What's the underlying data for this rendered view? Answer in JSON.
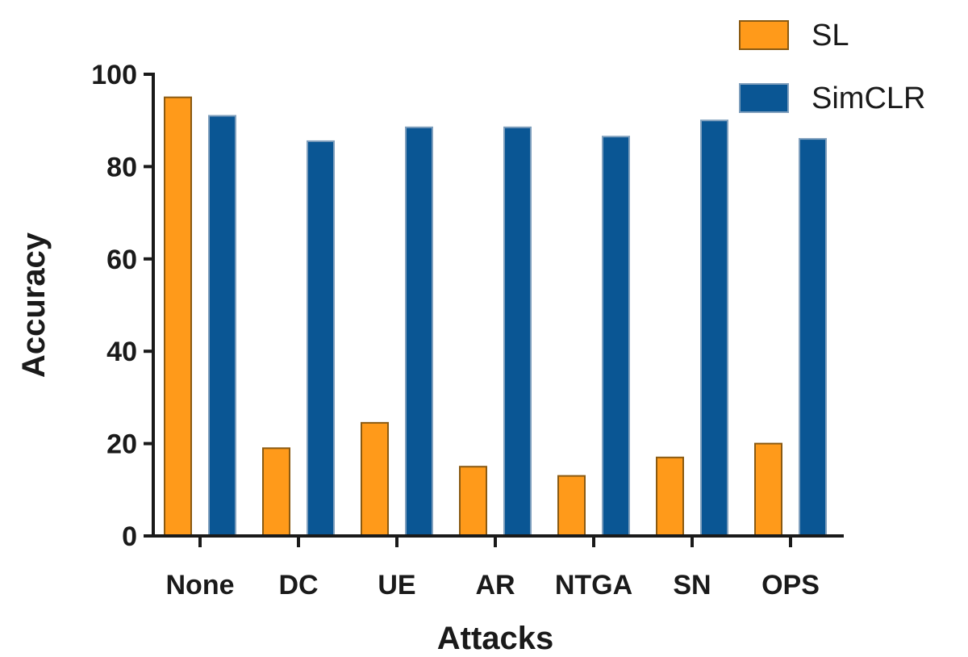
{
  "chart_data": {
    "type": "bar",
    "title": "",
    "xlabel": "Attacks",
    "ylabel": "Accuracy",
    "ylim": [
      0,
      100
    ],
    "yticks": [
      "0",
      "20",
      "40",
      "60",
      "80",
      "100"
    ],
    "categories": [
      "None",
      "DC",
      "UE",
      "AR",
      "NTGA",
      "SN",
      "OPS"
    ],
    "series": [
      {
        "name": "SL",
        "color": "#ff9a1a",
        "values": [
          95,
          19,
          24.5,
          15,
          13,
          17,
          20
        ]
      },
      {
        "name": "SimCLR",
        "color": "#0a5694",
        "values": [
          91,
          85.5,
          88.5,
          88.5,
          86.5,
          90,
          86
        ]
      }
    ],
    "grid": false,
    "legend": "top-right"
  }
}
